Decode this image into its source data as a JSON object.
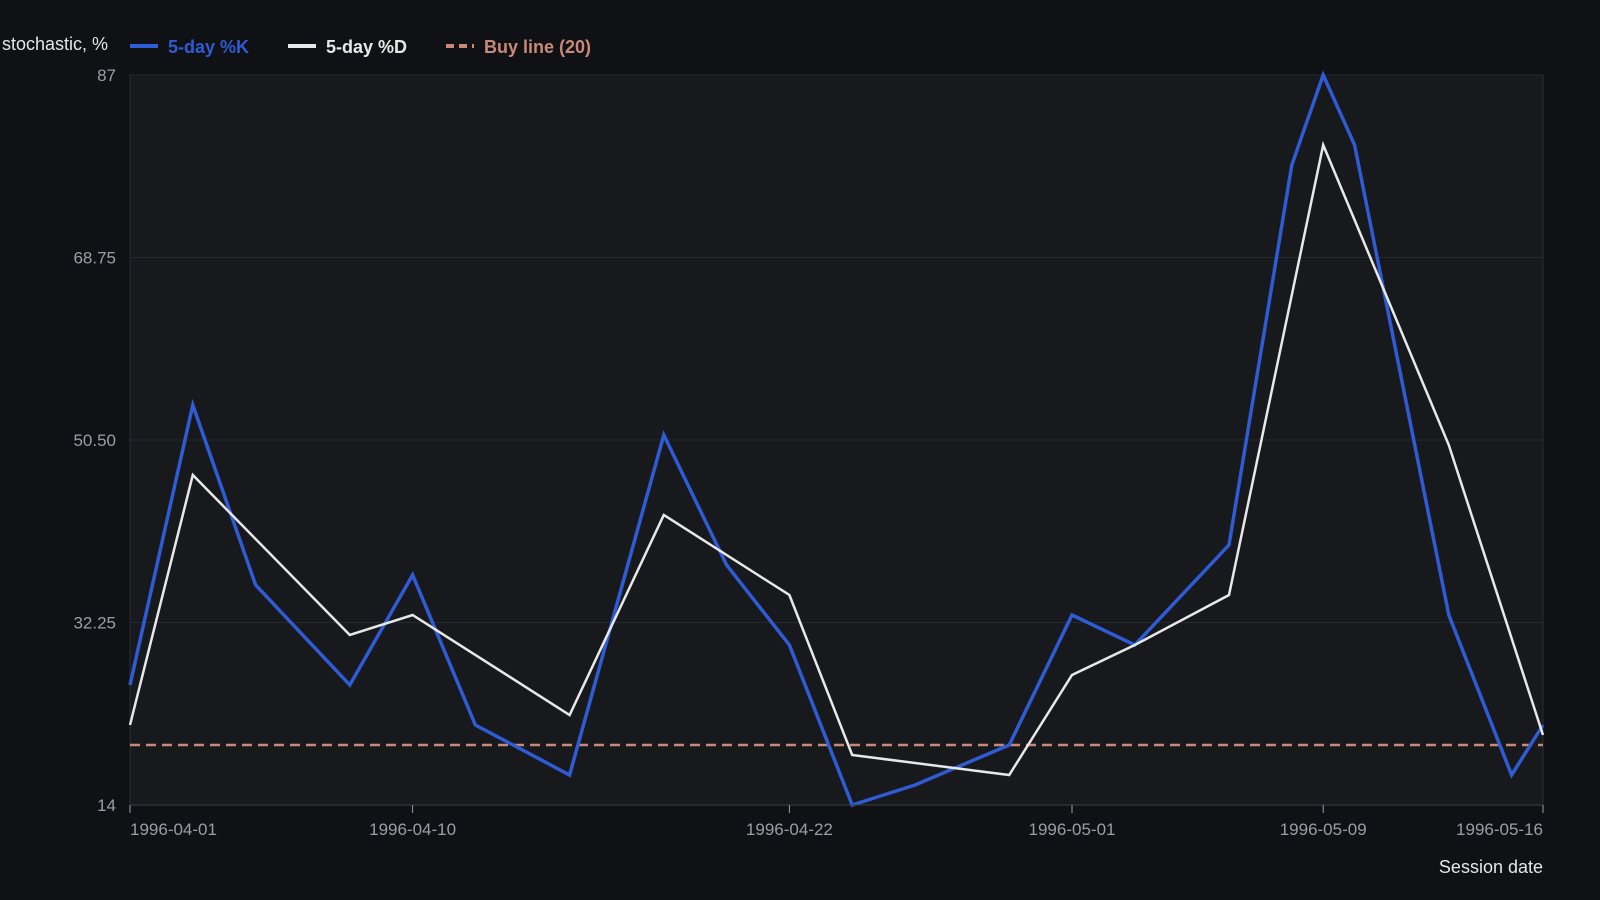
{
  "chart_data": {
    "type": "line",
    "title": "",
    "ylabel": "stochastic, %",
    "xlabel": "Session date",
    "ylim": [
      14,
      87
    ],
    "yticks": [
      "14",
      "32.25",
      "50.50",
      "68.75",
      "87"
    ],
    "x_start": "1996-04-01",
    "x_end": "1996-05-16",
    "xticks": [
      "1996-04-01",
      "1996-04-10",
      "1996-04-22",
      "1996-05-01",
      "1996-05-09",
      "1996-05-16"
    ],
    "grid": true,
    "legend_position": "top-left",
    "series": [
      {
        "name": "5-day %K",
        "color": "#2f5bd4",
        "x": [
          "1996-04-01",
          "1996-04-03",
          "1996-04-05",
          "1996-04-08",
          "1996-04-10",
          "1996-04-12",
          "1996-04-15",
          "1996-04-18",
          "1996-04-20",
          "1996-04-22",
          "1996-04-24",
          "1996-04-26",
          "1996-04-29",
          "1996-05-01",
          "1996-05-03",
          "1996-05-06",
          "1996-05-08",
          "1996-05-09",
          "1996-05-10",
          "1996-05-13",
          "1996-05-15",
          "1996-05-16"
        ],
        "values": [
          26,
          54,
          36,
          26,
          37,
          22,
          17,
          51,
          38,
          30,
          14,
          16,
          20,
          33,
          30,
          40,
          78,
          87,
          80,
          33,
          17,
          22
        ]
      },
      {
        "name": "5-day %D",
        "color": "#e8e8e8",
        "x": [
          "1996-04-01",
          "1996-04-03",
          "1996-04-08",
          "1996-04-10",
          "1996-04-15",
          "1996-04-18",
          "1996-04-22",
          "1996-04-24",
          "1996-04-29",
          "1996-05-01",
          "1996-05-03",
          "1996-05-06",
          "1996-05-09",
          "1996-05-13",
          "1996-05-16"
        ],
        "values": [
          22,
          47,
          31,
          33,
          23,
          43,
          35,
          19,
          17,
          27,
          30,
          35,
          80,
          50,
          21
        ]
      },
      {
        "name": "Buy line (20)",
        "color": "#c98878",
        "dashed": true,
        "x": [
          "1996-04-01",
          "1996-05-16"
        ],
        "values": [
          20,
          20
        ]
      }
    ]
  }
}
